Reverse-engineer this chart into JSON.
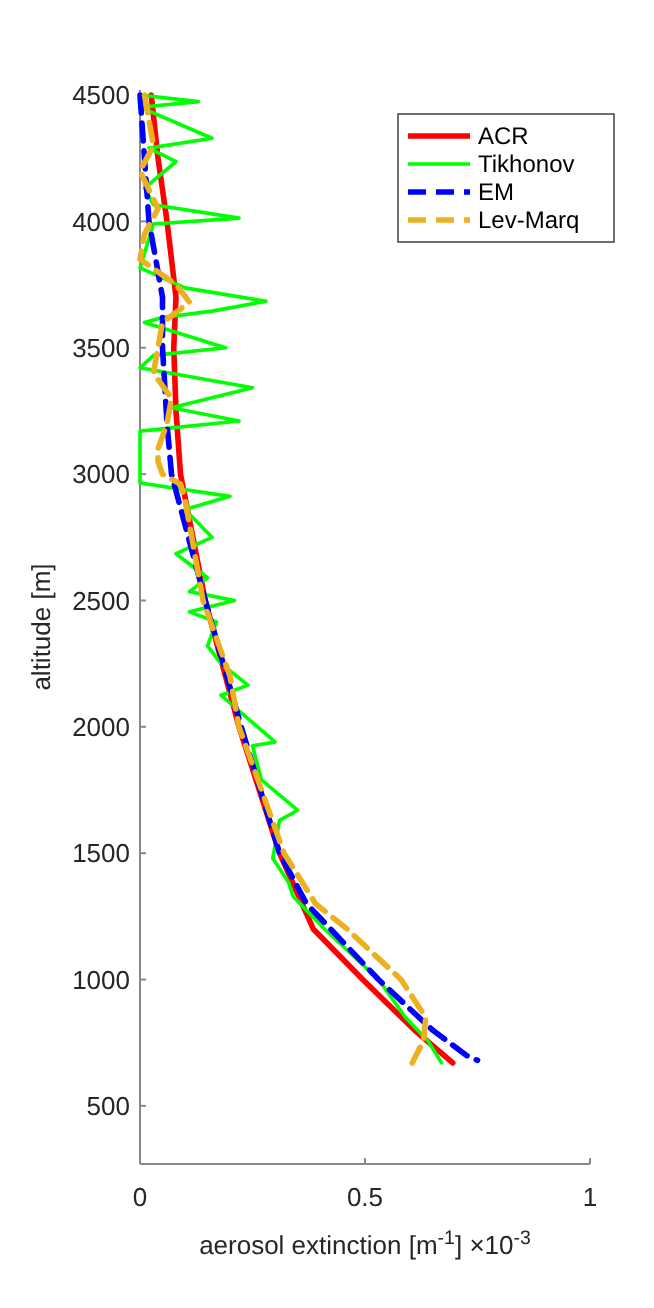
{
  "chart_data": {
    "type": "line",
    "xlabel": "aerosol extinction [m$^{-1}$] ×10$^{-3}$",
    "ylabel": "altitude [m]",
    "xlim": [
      0,
      1
    ],
    "xticks": [
      0,
      0.5,
      1
    ],
    "ylim": [
      270,
      4520
    ],
    "yticks": [
      500,
      1000,
      1500,
      2000,
      2500,
      3000,
      3500,
      4000,
      4500
    ],
    "grid": false,
    "legend": "top right",
    "series": [
      {
        "name": "ACR",
        "color": "#ff0000",
        "line_style": "solid",
        "x": [
          0.025,
          0.04,
          0.06,
          0.08,
          0.075,
          0.08,
          0.09,
          0.145,
          0.22,
          0.31,
          0.385,
          0.495,
          0.61,
          0.695
        ],
        "values": [
          4500,
          4250,
          4000,
          3700,
          3500,
          3250,
          3000,
          2500,
          2000,
          1500,
          1200,
          1000,
          800,
          670
        ]
      },
      {
        "name": "Tikhonov",
        "color": "#00ff00",
        "line_style": "solid",
        "x": [
          0.0,
          0.13,
          0.0,
          0.16,
          0.02,
          0.08,
          0.01,
          0.03,
          0.22,
          0.03,
          0.0,
          0.1,
          0.28,
          0.16,
          0.05,
          0.01,
          0.19,
          0.03,
          0.0,
          0.25,
          0.07,
          0.22,
          0.0,
          0.0,
          0.0,
          0.2,
          0.1,
          0.16,
          0.08,
          0.15,
          0.11,
          0.21,
          0.11,
          0.17,
          0.15,
          0.18,
          0.24,
          0.18,
          0.3,
          0.25,
          0.27,
          0.35,
          0.31,
          0.295,
          0.33,
          0.34,
          0.41,
          0.53,
          0.59,
          0.64,
          0.67
        ],
        "values": [
          4500,
          4474,
          4452,
          4329,
          4290,
          4237,
          4132,
          4066,
          4013,
          3990,
          3816,
          3737,
          3684,
          3645,
          3620,
          3600,
          3500,
          3470,
          3421,
          3342,
          3263,
          3210,
          3170,
          3100,
          2965,
          2912,
          2860,
          2750,
          2685,
          2590,
          2535,
          2500,
          2455,
          2415,
          2320,
          2250,
          2165,
          2125,
          1940,
          1925,
          1790,
          1670,
          1630,
          1480,
          1385,
          1330,
          1200,
          1000,
          850,
          757,
          670
        ]
      },
      {
        "name": "EM",
        "color": "#0000ff",
        "line_style": "dashed",
        "x": [
          0.0,
          0.01,
          0.02,
          0.05,
          0.05,
          0.06,
          0.07,
          0.145,
          0.225,
          0.31,
          0.37,
          0.53,
          0.65,
          0.725,
          0.75
        ],
        "values": [
          4500,
          4250,
          4000,
          3700,
          3500,
          3200,
          3000,
          2500,
          2000,
          1500,
          1300,
          1000,
          800,
          700,
          680
        ]
      },
      {
        "name": "Lev-Marq",
        "color": "#edb120",
        "line_style": "dashed",
        "x": [
          0.01,
          0.03,
          0.0,
          0.04,
          0.01,
          0.0,
          0.08,
          0.11,
          0.05,
          0.04,
          0.03,
          0.07,
          0.06,
          0.04,
          0.04,
          0.05,
          0.09,
          0.1,
          0.12,
          0.14,
          0.2,
          0.22,
          0.26,
          0.32,
          0.39,
          0.46,
          0.58,
          0.635,
          0.63,
          0.605
        ],
        "values": [
          4500,
          4300,
          4200,
          4050,
          3950,
          3850,
          3750,
          3680,
          3600,
          3500,
          3400,
          3300,
          3200,
          3100,
          3050,
          3000,
          2960,
          2900,
          2700,
          2500,
          2200,
          2000,
          1800,
          1500,
          1300,
          1200,
          1000,
          850,
          760,
          670
        ]
      }
    ]
  }
}
